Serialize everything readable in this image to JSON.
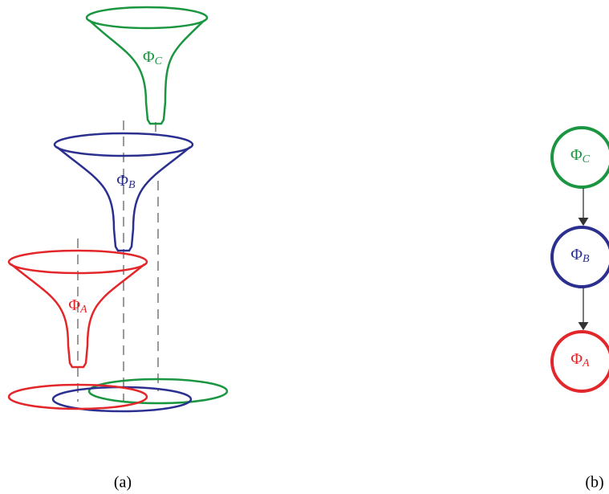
{
  "funnels": [
    {
      "symbol": "Φ",
      "sub": "C",
      "color": "#1a9641"
    },
    {
      "symbol": "Φ",
      "sub": "B",
      "color": "#2b2f8f"
    },
    {
      "symbol": "Φ",
      "sub": "A",
      "color": "#e3262a"
    }
  ],
  "nodes": [
    {
      "symbol": "Φ",
      "sub": "C",
      "color": "#1a9641"
    },
    {
      "symbol": "Φ",
      "sub": "B",
      "color": "#2b2f8f"
    },
    {
      "symbol": "Φ",
      "sub": "A",
      "color": "#e3262a"
    }
  ],
  "captions": [
    "(a)",
    "(b)"
  ]
}
